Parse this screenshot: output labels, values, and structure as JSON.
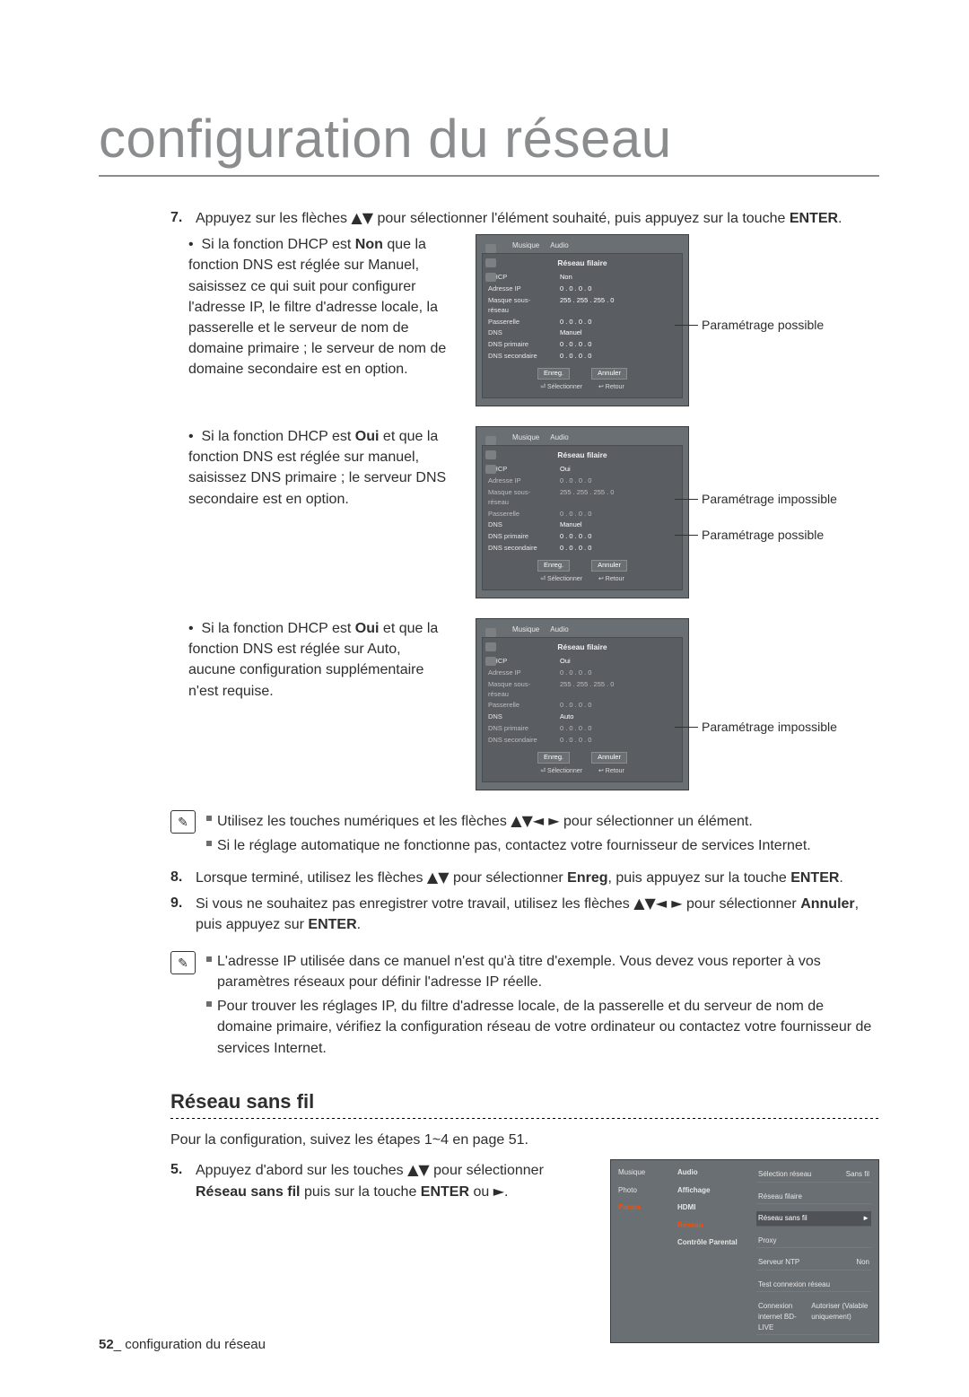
{
  "page": {
    "title": "configuration du réseau",
    "footer_num": "52",
    "footer_sep": "_",
    "footer_text": "configuration du réseau"
  },
  "step7": {
    "num": "7.",
    "text_a": "Appuyez sur les flèches ",
    "arrows": "▲▼",
    "text_b": " pour sélectionner l'élément souhaité, puis appuyez sur la touche ",
    "enter": "ENTER",
    "dot": "."
  },
  "case1": {
    "bullet": "•",
    "text": "Si la fonction DHCP est Non que la fonction DNS est réglée sur Manuel, saisissez ce qui suit pour configurer l'adresse IP, le filtre d'adresse locale, la passerelle et le serveur de nom de domaine primaire ; le serveur de nom de domaine secondaire est en option.",
    "bold1": "Non",
    "callout1": "Paramétrage possible"
  },
  "case2": {
    "bullet": "•",
    "text": "Si la fonction DHCP est Oui et que la fonction DNS est réglée sur manuel, saisissez DNS primaire ; le serveur DNS secondaire est en option.",
    "bold1": "Oui",
    "callout1": "Paramétrage impossible",
    "callout2": "Paramétrage possible"
  },
  "case3": {
    "bullet": "•",
    "text": "Si la fonction DHCP est Oui et que la fonction DNS est réglée sur Auto, aucune configuration supplémentaire n'est requise.",
    "bold1": "Oui",
    "callout1": "Paramétrage impossible"
  },
  "shots": {
    "tabs_music": "Musique",
    "tabs_audio": "Audio",
    "panel_title": "Réseau filaire",
    "dhcp": "DHCP",
    "dhcp_non": "Non",
    "dhcp_oui": "Oui",
    "ip": "Adresse IP",
    "ip_v": "0 . 0 . 0 . 0",
    "mask": "Masque sous-réseau",
    "mask_v": "255 . 255 . 255 . 0",
    "gw": "Passerelle",
    "gw_v": "0 . 0 . 0 . 0",
    "dns": "DNS",
    "dns_manuel": "Manuel",
    "dns_auto": "Auto",
    "dns1": "DNS primaire",
    "dns1_v": "0 . 0 . 0 . 0",
    "dns2": "DNS secondaire",
    "dns2_v": "0 . 0 . 0 . 0",
    "save": "Enreg.",
    "cancel": "Annuler",
    "sel": "Sélectionner",
    "ret": "Retour"
  },
  "notes1": {
    "l1_a": "Utilisez les touches numériques et les flèches ",
    "l1_arrows": "▲▼◄ ►",
    "l1_b": " pour sélectionner un élément.",
    "l2": "Si le réglage automatique ne fonctionne pas, contactez votre fournisseur de services Internet."
  },
  "step8": {
    "num": "8.",
    "a": "Lorsque terminé, utilisez les flèches ",
    "arrows": "▲▼",
    "b": " pour sélectionner ",
    "enreg": "Enreg",
    "c": ", puis appuyez sur la touche ",
    "enter": "ENTER",
    "dot": "."
  },
  "step9": {
    "num": "9.",
    "a": "Si vous ne souhaitez pas enregistrer votre travail, utilisez les flèches ",
    "arrows": "▲▼◄ ►",
    "b": " pour sélectionner ",
    "annuler": "Annuler",
    "c": ", puis appuyez sur ",
    "enter": "ENTER",
    "dot": "."
  },
  "notes2": {
    "l1": "L'adresse IP utilisée dans ce manuel n'est qu'à titre d'exemple. Vous devez vous reporter à vos paramètres réseaux pour définir l'adresse IP réelle.",
    "l2": "Pour trouver les réglages IP, du filtre d'adresse locale, de la passerelle et du serveur de nom de domaine primaire, vérifiez la configuration réseau de votre ordinateur ou contactez votre fournisseur de services Internet."
  },
  "wifi": {
    "heading": "Réseau sans fil",
    "intro": "Pour la configuration, suivez les étapes 1~4 en page 51.",
    "step5_num": "5.",
    "step5_a": "Appuyez d'abord sur les touches ",
    "step5_arrows": "▲▼",
    "step5_b": " pour sélectionner ",
    "step5_bold": "Réseau sans fil",
    "step5_c": " puis sur la touche ",
    "step5_enter": "ENTER",
    "step5_d": " ou ",
    "step5_arrow_r": "►",
    "step5_dot": ".",
    "menu": {
      "col_a": [
        "Musique",
        "Photo",
        "Param."
      ],
      "col_b": [
        "Audio",
        "Affichage",
        "HDMI",
        "Réseau",
        "Contrôle Parental"
      ],
      "col_b_hi": "Réseau",
      "rows": [
        {
          "l": "Sélection réseau",
          "r": "Sans fil"
        },
        {
          "l": "Réseau filaire",
          "r": ""
        },
        {
          "l": "Réseau sans fil",
          "r": "►",
          "sel": true
        },
        {
          "l": "Proxy",
          "r": ""
        },
        {
          "l": "Serveur NTP",
          "r": "Non"
        },
        {
          "l": "Test connexion réseau",
          "r": ""
        },
        {
          "l": "Connexion internet BD-LIVE",
          "r": "Autoriser (Valable uniquement)"
        }
      ]
    }
  }
}
